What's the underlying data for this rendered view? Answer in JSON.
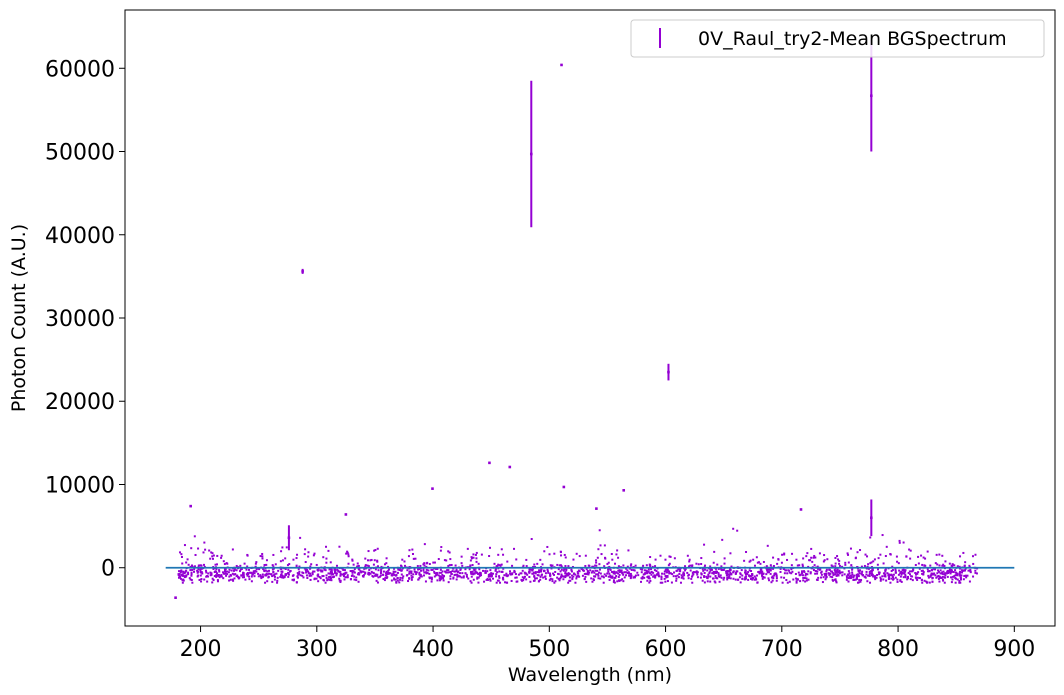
{
  "chart_data": {
    "type": "scatter",
    "xlabel": "Wavelength (nm)",
    "ylabel": "Photon Count (A.U.)",
    "xlim": [
      135,
      935
    ],
    "ylim": [
      -7000,
      67000
    ],
    "xticks": [
      200,
      300,
      400,
      500,
      600,
      700,
      800,
      900
    ],
    "yticks": [
      0,
      10000,
      20000,
      30000,
      40000,
      50000,
      60000
    ],
    "grid": false,
    "legend_position": "top-right",
    "legend_marker": "errorbar",
    "colors": {
      "data": "#9400d3",
      "baseline": "#1f77b4"
    },
    "series": [
      {
        "name": "0V_Raul_try2-Mean BGSpectrum",
        "noise_band": {
          "x_range": [
            181,
            868
          ],
          "y_range": [
            -1500,
            2000
          ]
        },
        "points": [
          {
            "x": 178.5,
            "y": -3600
          },
          {
            "x": 191.5,
            "y": 7400
          },
          {
            "x": 276,
            "y": 3600,
            "err": 1500
          },
          {
            "x": 287.8,
            "y": 35600,
            "err": 300
          },
          {
            "x": 325,
            "y": 6400
          },
          {
            "x": 399.5,
            "y": 9500
          },
          {
            "x": 448.5,
            "y": 12600
          },
          {
            "x": 466,
            "y": 12100
          },
          {
            "x": 484.5,
            "y": 49700,
            "err": 8800
          },
          {
            "x": 510.5,
            "y": 60400
          },
          {
            "x": 512.5,
            "y": 9700
          },
          {
            "x": 540.5,
            "y": 7100
          },
          {
            "x": 564,
            "y": 9300
          },
          {
            "x": 602.5,
            "y": 23500,
            "err": 1000
          },
          {
            "x": 716.5,
            "y": 7000
          },
          {
            "x": 777,
            "y": 56700,
            "err": 6700
          },
          {
            "x": 777,
            "y": 6000,
            "err": 2200
          }
        ]
      },
      {
        "x": [
          170,
          900
        ],
        "y": [
          0,
          0
        ]
      }
    ]
  }
}
